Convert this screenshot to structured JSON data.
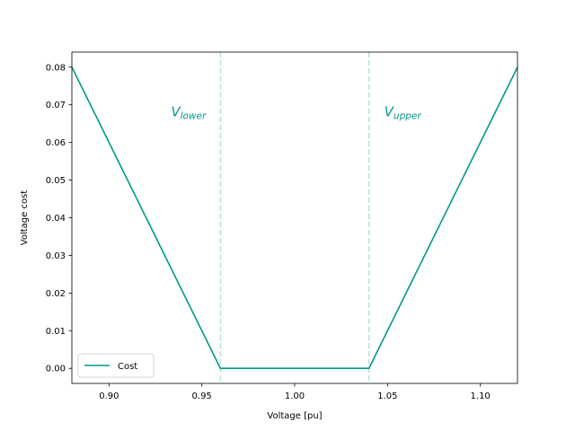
{
  "chart_data": {
    "type": "line",
    "xlabel": "Voltage [pu]",
    "ylabel": "Voltage cost",
    "xlim": [
      0.88,
      1.12
    ],
    "ylim": [
      -0.004,
      0.084
    ],
    "x_ticks": [
      0.9,
      0.95,
      1.0,
      1.05,
      1.1
    ],
    "x_tick_labels": [
      "0.90",
      "0.95",
      "1.00",
      "1.05",
      "1.10"
    ],
    "y_ticks": [
      0.0,
      0.01,
      0.02,
      0.03,
      0.04,
      0.05,
      0.06,
      0.07,
      0.08
    ],
    "y_tick_labels": [
      "0.00",
      "0.01",
      "0.02",
      "0.03",
      "0.04",
      "0.05",
      "0.06",
      "0.07",
      "0.08"
    ],
    "grid": false,
    "legend": {
      "placement": "lower-left",
      "entries": [
        "Cost"
      ]
    },
    "series": [
      {
        "name": "Cost",
        "color": "#009988",
        "x": [
          0.88,
          0.96,
          1.04,
          1.12
        ],
        "y": [
          0.08,
          0.0,
          0.0,
          0.08
        ]
      }
    ],
    "vlines": [
      {
        "x": 0.96,
        "label_main": "V",
        "label_sub": "lower",
        "label_y": 0.067,
        "color": "#b9e0da"
      },
      {
        "x": 1.04,
        "label_main": "V",
        "label_sub": "upper",
        "label_y": 0.067,
        "color": "#b9e0da"
      }
    ]
  }
}
